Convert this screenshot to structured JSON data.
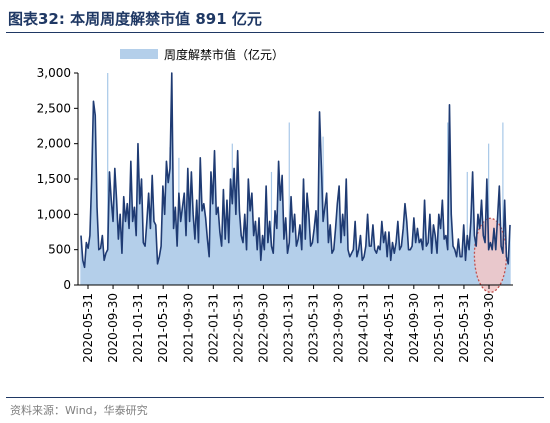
{
  "header": {
    "title": "图表32:  本周周度解禁市值 891 亿元"
  },
  "footer": {
    "source": "资料来源：Wind，华泰研究"
  },
  "chart_data": {
    "type": "area",
    "title": "",
    "xlabel": "",
    "ylabel": "",
    "ylim": [
      0,
      3000
    ],
    "yticks": [
      "0",
      "500",
      "1,000",
      "1,500",
      "2,000",
      "2,500",
      "3,000"
    ],
    "xticks": [
      "2020-05-31",
      "2020-09-30",
      "2021-01-31",
      "2021-05-31",
      "2021-09-30",
      "2022-01-31",
      "2022-05-31",
      "2022-09-30",
      "2023-01-31",
      "2023-05-31",
      "2023-09-30",
      "2024-01-31",
      "2024-05-31",
      "2024-09-30",
      "2025-01-31",
      "2025-05-31",
      "2025-09-30"
    ],
    "legend": {
      "position": "top-center"
    },
    "grid": false,
    "colors": {
      "area": "#b4cfea",
      "line": "#1f3b73",
      "spike": "#a8c8e8",
      "highlight_fill": "#f2c7c7",
      "highlight_stroke": "#c0504d",
      "text": "#000000"
    },
    "series": [
      {
        "name": "周度解禁市值（亿元）",
        "x_start": "2020-05-31",
        "x_step_days": 7,
        "values": [
          700,
          350,
          250,
          600,
          520,
          700,
          1500,
          2600,
          2400,
          1100,
          500,
          520,
          700,
          350,
          450,
          500,
          1600,
          1200,
          900,
          1650,
          1200,
          650,
          1000,
          450,
          1250,
          900,
          1150,
          800,
          1750,
          900,
          1100,
          700,
          2000,
          1150,
          1500,
          600,
          550,
          900,
          1300,
          800,
          1550,
          900,
          850,
          300,
          400,
          550,
          1400,
          1000,
          1750,
          1450,
          1650,
          3050,
          800,
          1100,
          550,
          1300,
          900,
          1100,
          1300,
          700,
          1650,
          900,
          1600,
          1000,
          650,
          1200,
          600,
          1800,
          1050,
          1150,
          950,
          650,
          400,
          1600,
          1150,
          1900,
          1000,
          1100,
          750,
          550,
          1350,
          650,
          1200,
          600,
          1500,
          1150,
          1650,
          1000,
          1900,
          1050,
          700,
          600,
          1000,
          500,
          1500,
          1050,
          1300,
          700,
          900,
          500,
          950,
          350,
          700,
          500,
          1400,
          600,
          900,
          550,
          450,
          1050,
          800,
          1750,
          1200,
          1550,
          650,
          950,
          450,
          600,
          1250,
          750,
          1000,
          550,
          650,
          850,
          500,
          1500,
          650,
          1300,
          1000,
          550,
          600,
          800,
          1050,
          600,
          2450,
          1700,
          900,
          1100,
          1300,
          600,
          850,
          450,
          500,
          800,
          1150,
          1400,
          600,
          1000,
          700,
          1500,
          500,
          400,
          450,
          500,
          900,
          400,
          500,
          700,
          350,
          400,
          550,
          1000,
          550,
          550,
          850,
          500,
          450,
          550,
          500,
          900,
          600,
          750,
          400,
          750,
          350,
          600,
          450,
          600,
          900,
          500,
          550,
          800,
          1150,
          900,
          500,
          500,
          550,
          950,
          600,
          800,
          600,
          650,
          500,
          1200,
          550,
          600,
          1000,
          450,
          850,
          700,
          450,
          1000,
          800,
          1200,
          650,
          700,
          500,
          2550,
          1000,
          550,
          500,
          400,
          650,
          400,
          400,
          850,
          350,
          700,
          500,
          900,
          1600,
          700,
          550,
          1000,
          800,
          1200,
          700,
          600,
          1500,
          500,
          600,
          500,
          800,
          500,
          950,
          1400,
          550,
          450,
          1200,
          400,
          300,
          850
        ]
      }
    ],
    "spike_values": [
      {
        "i": 15,
        "v": 3000
      },
      {
        "i": 50,
        "v": 1950
      },
      {
        "i": 55,
        "v": 1800
      },
      {
        "i": 75,
        "v": 1700
      },
      {
        "i": 85,
        "v": 2000
      },
      {
        "i": 107,
        "v": 1600
      },
      {
        "i": 117,
        "v": 2300
      },
      {
        "i": 136,
        "v": 2100
      },
      {
        "i": 206,
        "v": 2300
      },
      {
        "i": 217,
        "v": 1600
      },
      {
        "i": 229,
        "v": 2000
      },
      {
        "i": 237,
        "v": 2300
      },
      {
        "i": 246,
        "v": 1700
      }
    ]
  }
}
